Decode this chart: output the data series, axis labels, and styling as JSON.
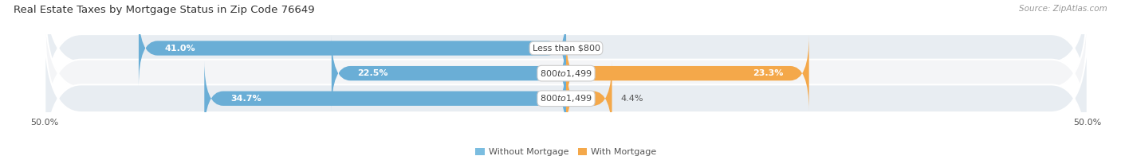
{
  "title": "Real Estate Taxes by Mortgage Status in Zip Code 76649",
  "source": "Source: ZipAtlas.com",
  "rows": [
    {
      "label": "Less than $800",
      "without_mortgage": 41.0,
      "with_mortgage": 0.0
    },
    {
      "label": "$800 to $1,499",
      "without_mortgage": 22.5,
      "with_mortgage": 23.3
    },
    {
      "label": "$800 to $1,499",
      "without_mortgage": 34.7,
      "with_mortgage": 4.4
    }
  ],
  "xlim": [
    -50.0,
    50.0
  ],
  "color_without": "#6aaed6",
  "color_with": "#f4a84a",
  "color_without_legend": "#7bbde0",
  "color_with_legend": "#f4a84a",
  "bar_height": 0.58,
  "title_fontsize": 9.5,
  "label_fontsize": 8.0,
  "tick_fontsize": 8.0,
  "source_fontsize": 7.5,
  "legend_fontsize": 8.0,
  "row_bg_dark": "#e8edf2",
  "row_bg_light": "#f4f5f7",
  "pill_bg": "#e8edf2"
}
